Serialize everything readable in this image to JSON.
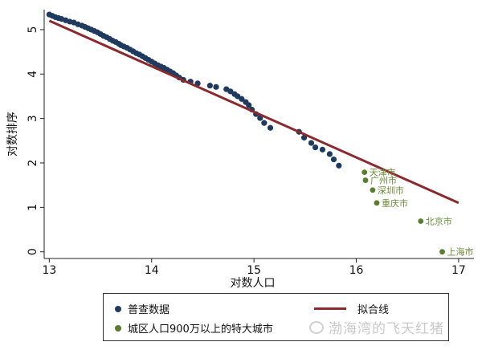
{
  "chart_data": {
    "type": "scatter",
    "title": "",
    "xlabel": "对数人口",
    "ylabel": "对数排序",
    "xlim": [
      12.95,
      17.15
    ],
    "ylim": [
      -0.15,
      5.45
    ],
    "xticks": [
      13,
      14,
      15,
      16,
      17
    ],
    "yticks": [
      0,
      1,
      2,
      3,
      4,
      5
    ],
    "grid": false,
    "legend_position": "bottom",
    "series": [
      {
        "name": "普查数据",
        "color": "#1f3a5f",
        "points": [
          [
            13.0,
            5.34
          ],
          [
            13.03,
            5.31
          ],
          [
            13.06,
            5.28
          ],
          [
            13.09,
            5.26
          ],
          [
            13.12,
            5.24
          ],
          [
            13.16,
            5.21
          ],
          [
            13.2,
            5.18
          ],
          [
            13.24,
            5.16
          ],
          [
            13.28,
            5.12
          ],
          [
            13.32,
            5.09
          ],
          [
            13.35,
            5.06
          ],
          [
            13.38,
            5.03
          ],
          [
            13.41,
            5.0
          ],
          [
            13.44,
            4.97
          ],
          [
            13.47,
            4.94
          ],
          [
            13.5,
            4.9
          ],
          [
            13.53,
            4.86
          ],
          [
            13.56,
            4.83
          ],
          [
            13.59,
            4.79
          ],
          [
            13.62,
            4.75
          ],
          [
            13.65,
            4.72
          ],
          [
            13.68,
            4.68
          ],
          [
            13.7,
            4.65
          ],
          [
            13.73,
            4.62
          ],
          [
            13.76,
            4.59
          ],
          [
            13.79,
            4.55
          ],
          [
            13.82,
            4.51
          ],
          [
            13.85,
            4.47
          ],
          [
            13.88,
            4.44
          ],
          [
            13.91,
            4.4
          ],
          [
            13.94,
            4.36
          ],
          [
            13.97,
            4.32
          ],
          [
            14.0,
            4.28
          ],
          [
            14.03,
            4.24
          ],
          [
            14.06,
            4.2
          ],
          [
            14.09,
            4.17
          ],
          [
            14.12,
            4.14
          ],
          [
            14.15,
            4.1
          ],
          [
            14.18,
            4.06
          ],
          [
            14.21,
            4.02
          ],
          [
            14.24,
            3.97
          ],
          [
            14.27,
            3.92
          ],
          [
            14.31,
            3.87
          ],
          [
            14.38,
            3.83
          ],
          [
            14.45,
            3.79
          ],
          [
            14.57,
            3.74
          ],
          [
            14.63,
            3.71
          ],
          [
            14.73,
            3.66
          ],
          [
            14.77,
            3.61
          ],
          [
            14.81,
            3.55
          ],
          [
            14.84,
            3.5
          ],
          [
            14.88,
            3.44
          ],
          [
            14.92,
            3.37
          ],
          [
            14.95,
            3.3
          ],
          [
            14.98,
            3.2
          ],
          [
            15.02,
            3.1
          ],
          [
            15.06,
            3.01
          ],
          [
            15.1,
            2.9
          ],
          [
            15.16,
            2.79
          ],
          [
            15.44,
            2.7
          ],
          [
            15.49,
            2.57
          ],
          [
            15.56,
            2.45
          ],
          [
            15.6,
            2.35
          ],
          [
            15.67,
            2.3
          ],
          [
            15.74,
            2.2
          ],
          [
            15.78,
            2.08
          ],
          [
            15.83,
            1.94
          ]
        ]
      },
      {
        "name": "城区人口900万以上的特大城市",
        "color": "#5a7d2e",
        "points": [
          [
            16.08,
            1.79,
            "天津市"
          ],
          [
            16.09,
            1.61,
            "广州市"
          ],
          [
            16.16,
            1.39,
            "深圳市"
          ],
          [
            16.2,
            1.1,
            "重庆市"
          ],
          [
            16.63,
            0.69,
            "北京市"
          ],
          [
            16.84,
            0.0,
            "上海市"
          ]
        ]
      }
    ],
    "fit_line": {
      "name": "拟合线",
      "color": "#8b2a2e",
      "x": [
        13.0,
        17.0
      ],
      "y": [
        5.2,
        1.1
      ]
    }
  },
  "watermark": "渤海湾的飞天红猪"
}
